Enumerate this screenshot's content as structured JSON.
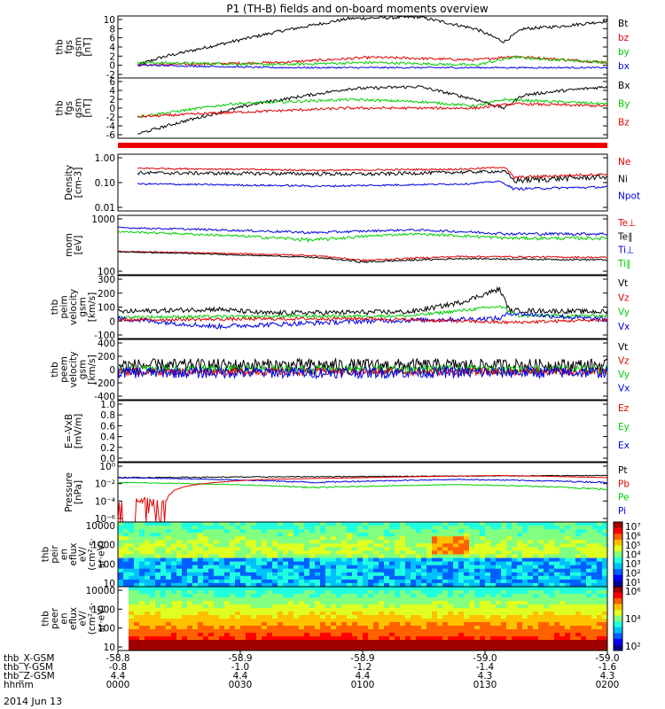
{
  "title": "P1 (TH-B) fields and on-board moments overview",
  "date_label": "2014 Jun 13",
  "colors": {
    "black": "#000000",
    "red": "#e00000",
    "green": "#00cc00",
    "blue": "#0000e0",
    "fill_red": "#ee0000"
  },
  "chart_data": [
    {
      "id": "fgs-mag",
      "type": "line",
      "ylabel_lines": [
        "thb",
        "fgs",
        "gsm",
        "[nT]"
      ],
      "yticks": [
        "10",
        "8",
        "6",
        "4",
        "2",
        "0",
        "-2"
      ],
      "ylim": [
        -2,
        10
      ],
      "legend": [
        {
          "label": "Bt",
          "color": "black"
        },
        {
          "label": "bz",
          "color": "red"
        },
        {
          "label": "by",
          "color": "green"
        },
        {
          "label": "bx",
          "color": "blue"
        }
      ]
    },
    {
      "id": "fgs-bgsm",
      "type": "line",
      "ylabel_lines": [
        "thb",
        "fgs",
        "gsm",
        "[nT]"
      ],
      "yticks": [
        "6",
        "4",
        "2",
        "0",
        "-2",
        "-4",
        "-6"
      ],
      "ylim": [
        -7,
        7
      ],
      "legend": [
        {
          "label": "Bx",
          "color": "black"
        },
        {
          "label": "By",
          "color": "green"
        },
        {
          "label": "Bz",
          "color": "red"
        }
      ]
    },
    {
      "id": "density",
      "type": "line",
      "ylabel_lines": [
        "Density",
        "[cm-3]"
      ],
      "yticks": [
        "1.00",
        "0.10",
        "0.01"
      ],
      "ylim": [
        0.01,
        1
      ],
      "log": true,
      "legend": [
        {
          "label": "Ne",
          "color": "red"
        },
        {
          "label": "Ni",
          "color": "black"
        },
        {
          "label": "Npot",
          "color": "blue"
        }
      ]
    },
    {
      "id": "temperature",
      "type": "line",
      "ylabel_lines": [
        "mom",
        "[eV]"
      ],
      "yticks": [
        "1000",
        "100"
      ],
      "ylim": [
        20,
        5000
      ],
      "log": true,
      "legend": [
        {
          "label": "Te⊥",
          "color": "red"
        },
        {
          "label": "Te∥",
          "color": "black"
        },
        {
          "label": "Ti⊥",
          "color": "blue"
        },
        {
          "label": "Ti∥",
          "color": "green"
        }
      ]
    },
    {
      "id": "ion-velocity",
      "type": "line",
      "ylabel_lines": [
        "thb",
        "peim",
        "velocity",
        "gsm",
        "[km/s]"
      ],
      "yticks": [
        "300",
        "200",
        "100",
        "0",
        "-100"
      ],
      "ylim": [
        -150,
        320
      ],
      "legend": [
        {
          "label": "Vt",
          "color": "black"
        },
        {
          "label": "Vz",
          "color": "red"
        },
        {
          "label": "Vy",
          "color": "green"
        },
        {
          "label": "Vx",
          "color": "blue"
        }
      ]
    },
    {
      "id": "electron-velocity",
      "type": "line",
      "ylabel_lines": [
        "thb",
        "peem",
        "velocity",
        "gsm",
        "[km/s]"
      ],
      "yticks": [
        "400",
        "200",
        "0",
        "-200",
        "-400"
      ],
      "ylim": [
        -420,
        420
      ],
      "legend": [
        {
          "label": "Vt",
          "color": "black"
        },
        {
          "label": "Vz",
          "color": "red"
        },
        {
          "label": "Vy",
          "color": "green"
        },
        {
          "label": "Vx",
          "color": "blue"
        }
      ]
    },
    {
      "id": "efield",
      "type": "line",
      "ylabel_lines": [
        "E=-VxB",
        "[mV/m]"
      ],
      "yticks": [
        "1.0",
        "0.8",
        "0.6",
        "0.4",
        "0.2",
        "0.0"
      ],
      "ylim": [
        0,
        1
      ],
      "legend": [
        {
          "label": "Ez",
          "color": "red"
        },
        {
          "label": "Ey",
          "color": "green"
        },
        {
          "label": "Ex",
          "color": "blue"
        }
      ]
    },
    {
      "id": "pressure",
      "type": "line",
      "ylabel_lines": [
        "Pressure",
        "[nPa]"
      ],
      "yticks": [
        "10⁰",
        "10⁻²",
        "10⁻⁴",
        "10⁻⁶"
      ],
      "ylim": [
        1e-06,
        1
      ],
      "log": true,
      "legend": [
        {
          "label": "Pt",
          "color": "black"
        },
        {
          "label": "Pb",
          "color": "red"
        },
        {
          "label": "Pe",
          "color": "green"
        },
        {
          "label": "Pi",
          "color": "blue"
        }
      ]
    },
    {
      "id": "ion-spectrogram",
      "type": "heatmap",
      "ylabel_lines": [
        "thb",
        "peir",
        "en",
        "eflux",
        "eV/",
        "(cm²·s·",
        "sr·eV)"
      ],
      "yticks": [
        "10000",
        "1000",
        "100",
        "10"
      ],
      "ylim": [
        5,
        30000
      ],
      "log": true,
      "colorbar_ticks": [
        "10⁷",
        "10⁶",
        "10⁵",
        "10⁴",
        "10³",
        "10²",
        "10¹"
      ]
    },
    {
      "id": "electron-spectrogram",
      "type": "heatmap",
      "ylabel_lines": [
        "thb",
        "peer",
        "en",
        "eflux",
        "eV/",
        "(cm²·s·",
        "sr·eV)"
      ],
      "yticks": [
        "10000",
        "1000",
        "100",
        "10"
      ],
      "ylim": [
        5,
        30000
      ],
      "log": true,
      "colorbar_ticks": [
        "10⁶",
        "10⁴",
        "10²"
      ]
    }
  ],
  "x_axis": {
    "row_labels": [
      "thb_X-GSM",
      "thb_Y-GSM",
      "thb_Z-GSM",
      "hhmm"
    ],
    "ticks": [
      {
        "values": [
          "-58.8",
          "-0.8",
          "4.4",
          "0000"
        ]
      },
      {
        "values": [
          "-58.9",
          "-1.0",
          "4.4",
          "0030"
        ]
      },
      {
        "values": [
          "-58.9",
          "-1.2",
          "4.4",
          "0100"
        ]
      },
      {
        "values": [
          "-59.0",
          "-1.4",
          "4.3",
          "0130"
        ]
      },
      {
        "values": [
          "-59.0",
          "-1.6",
          "4.3",
          "0200"
        ]
      }
    ]
  }
}
